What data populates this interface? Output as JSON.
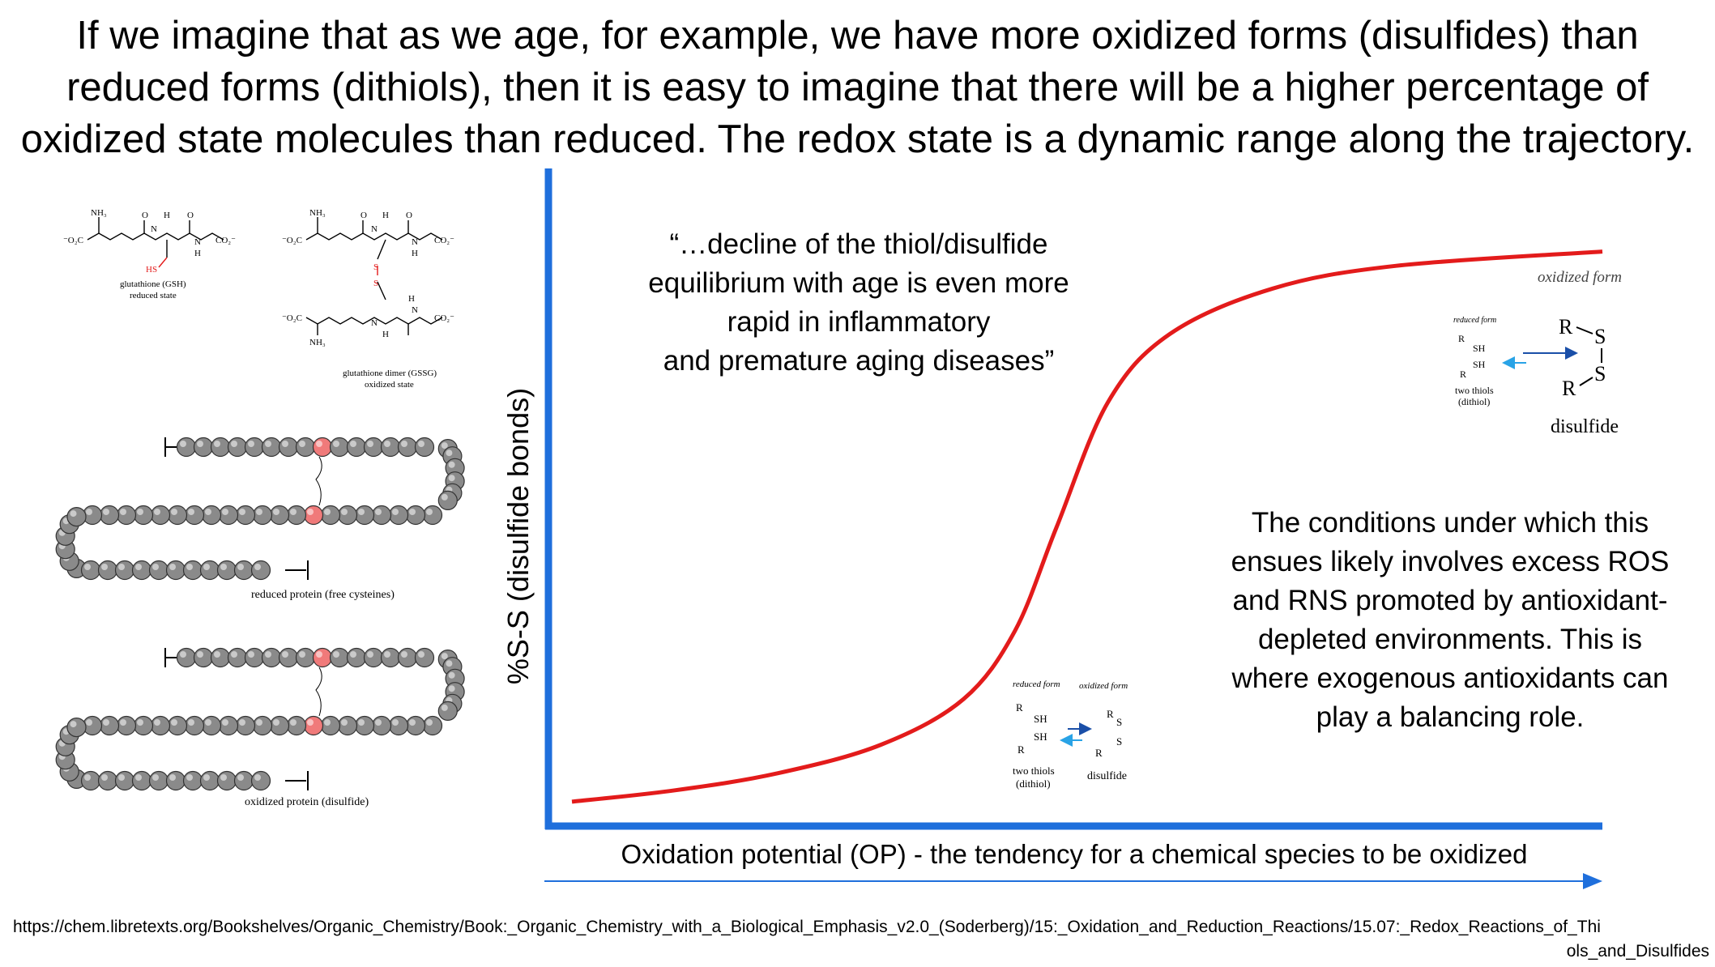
{
  "title_lines": [
    "If we imagine that as we age, for example, we have more oxidized forms (disulfides) than",
    "reduced forms (dithiols), then it is easy to imagine that there will be a higher percentage of",
    "oxidized state molecules than reduced. The redox state is a dynamic range along the trajectory."
  ],
  "quote_lines": [
    "“…decline of the thiol/disulfide",
    "equilibrium with age is even more",
    "rapid in inflammatory",
    "and premature aging diseases”"
  ],
  "conditions_lines": [
    "The conditions under which this",
    "ensues likely involves excess ROS",
    "and RNS promoted by antioxidant-",
    "depleted environments. This is",
    "where exogenous antioxidants can",
    "play a balancing role."
  ],
  "y_axis_label": "%S-S (disulfide bonds)",
  "x_axis_label": "Oxidation potential (OP) - the tendency for a chemical species to be oxidized",
  "url_lines": [
    "https://chem.libretexts.org/Bookshelves/Organic_Chemistry/Book:_Organic_Chemistry_with_a_Biological_Emphasis_v2.0_(Soderberg)/15:_Oxidation_and_Reduction_Reactions/15.07:_Redox_Reactions_of_Thi",
    "ols_and_Disulfides"
  ],
  "colors": {
    "axis": "#1f6fdc",
    "curve": "#e31b1b",
    "arrow_dark": "#1a4fa8",
    "arrow_light": "#29a3e6"
  },
  "curve": {
    "x_range": [
      0,
      1
    ],
    "y_range": [
      0,
      1
    ],
    "points": [
      [
        0.0,
        0.02
      ],
      [
        0.1,
        0.04
      ],
      [
        0.2,
        0.07
      ],
      [
        0.3,
        0.12
      ],
      [
        0.38,
        0.2
      ],
      [
        0.43,
        0.32
      ],
      [
        0.47,
        0.5
      ],
      [
        0.52,
        0.72
      ],
      [
        0.58,
        0.84
      ],
      [
        0.68,
        0.92
      ],
      [
        0.8,
        0.96
      ],
      [
        1.0,
        0.985
      ]
    ]
  },
  "molecules": {
    "gsh_name": "glutathione (GSH)",
    "gsh_state": "reduced state",
    "gssg_name": "glutathione dimer (GSSG)",
    "gssg_state": "oxidized state",
    "nh3": "NH₃",
    "o2c": "⁻O₂C",
    "co2": "CO₂⁻",
    "h": "H",
    "n": "N",
    "o": "O",
    "hs": "HS",
    "s": "S"
  },
  "protein_reduced_label": "reduced protein (free cysteines)",
  "protein_oxidized_label": "oxidized protein (disulfide)",
  "inset_small": {
    "reduced_form": "reduced form",
    "oxidized_form": "oxidized form",
    "r": "R",
    "sh": "SH",
    "s": "S",
    "two_thiols": "two thiols",
    "dithiol": "(dithiol)",
    "disulfide": "disulfide"
  },
  "inset_large": {
    "reduced_form": "reduced form",
    "oxidized_form": "oxidized form",
    "r": "R",
    "sh": "SH",
    "s": "S",
    "two_thiols": "two thiols",
    "dithiol": "(dithiol)",
    "disulfide": "disulfide"
  }
}
